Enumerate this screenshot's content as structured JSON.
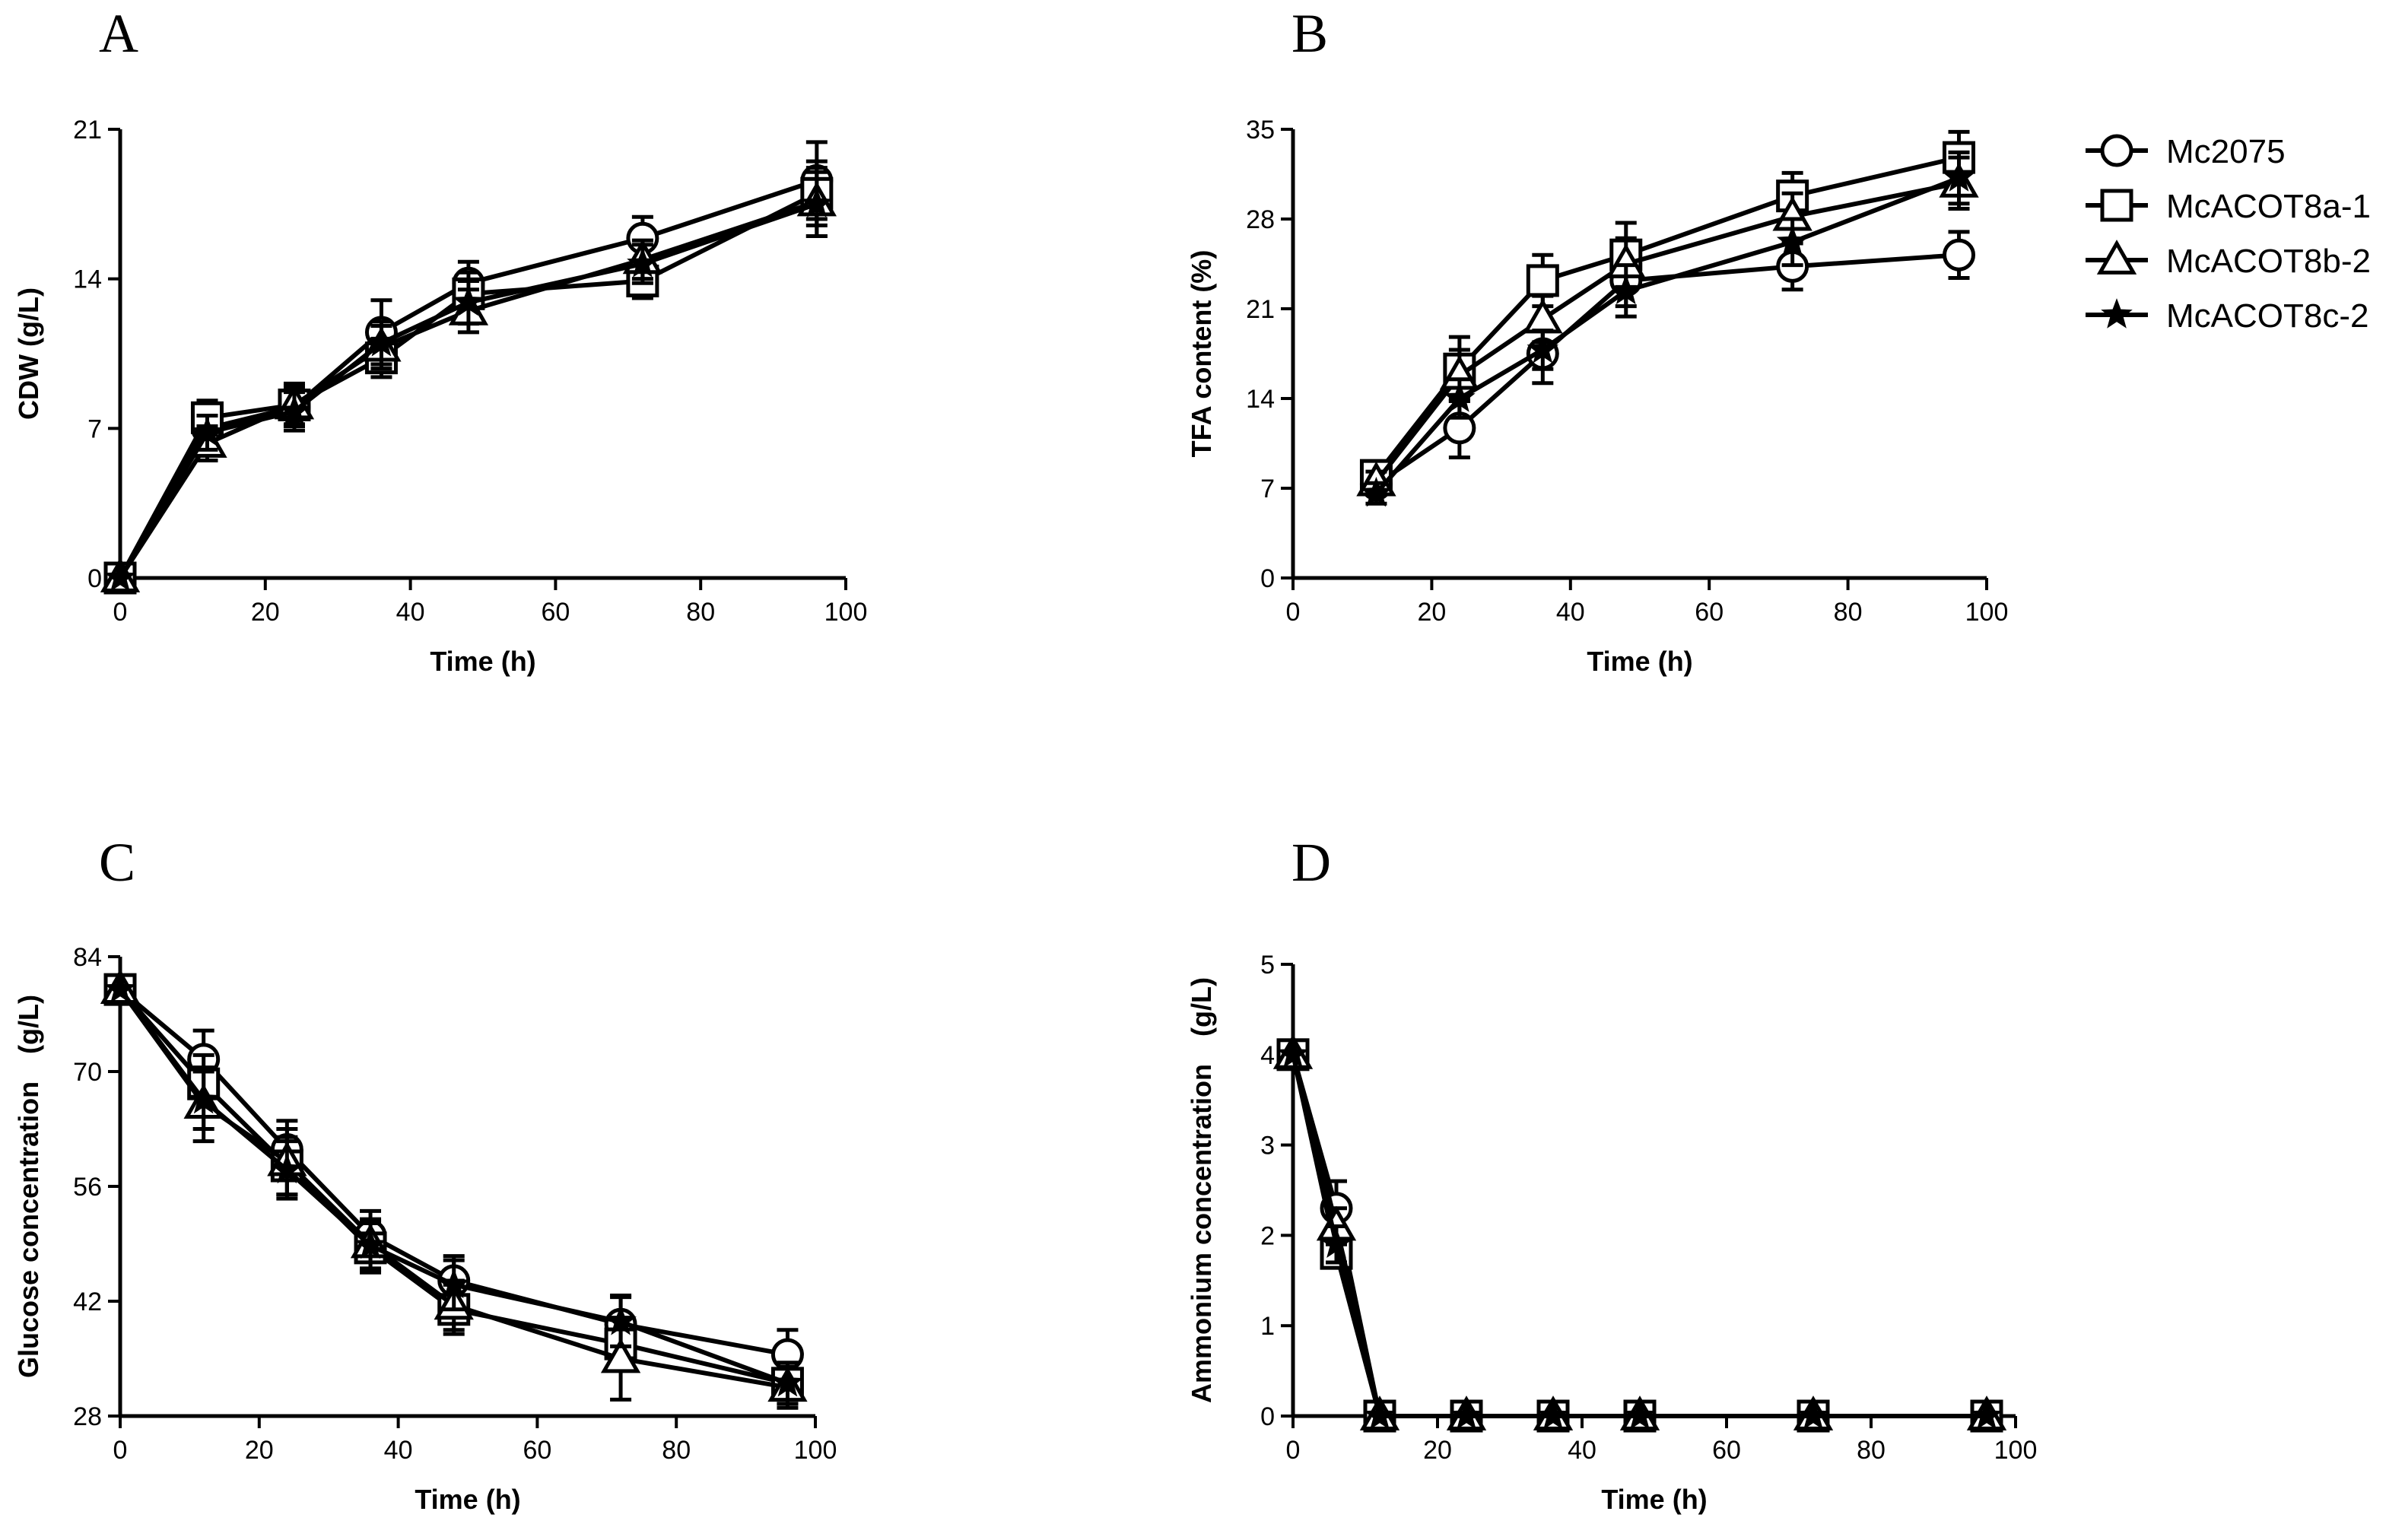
{
  "legend": [
    {
      "name": "Mc2075",
      "marker": "circle"
    },
    {
      "name": "McACOT8a-1",
      "marker": "square"
    },
    {
      "name": "McACOT8b-2",
      "marker": "triangle"
    },
    {
      "name": "McACOT8c-2",
      "marker": "star"
    }
  ],
  "chart_data": [
    {
      "panel": "A",
      "type": "line",
      "xlabel": "Time (h)",
      "ylabel": "CDW (g/L)",
      "xlim": [
        0,
        100
      ],
      "ylim": [
        0,
        21
      ],
      "xticks": [
        0,
        20,
        40,
        60,
        80,
        100
      ],
      "yticks": [
        0,
        7,
        14,
        21
      ],
      "series": [
        {
          "name": "Mc2075",
          "marker": "circle",
          "x": [
            0,
            12,
            24,
            36,
            48,
            72,
            96
          ],
          "y": [
            0,
            7.0,
            8.0,
            11.5,
            13.8,
            15.9,
            18.6
          ],
          "err": [
            0,
            0.8,
            0.9,
            1.5,
            1.0,
            1.0,
            1.8
          ]
        },
        {
          "name": "McACOT8a-1",
          "marker": "square",
          "x": [
            0,
            12,
            24,
            36,
            48,
            72,
            96
          ],
          "y": [
            0,
            7.5,
            8.1,
            10.3,
            13.3,
            13.9,
            18.0
          ],
          "err": [
            0,
            0.8,
            0.9,
            0.9,
            1.0,
            0.8,
            1.5
          ]
        },
        {
          "name": "McACOT8b-2",
          "marker": "triangle",
          "x": [
            0,
            12,
            24,
            36,
            48,
            72,
            96
          ],
          "y": [
            0,
            6.3,
            8.1,
            10.8,
            12.5,
            14.9,
            17.6
          ],
          "err": [
            0,
            0.8,
            1.0,
            1.0,
            1.0,
            0.9,
            1.6
          ]
        },
        {
          "name": "McACOT8c-2",
          "marker": "star",
          "x": [
            0,
            12,
            24,
            36,
            48,
            72,
            96
          ],
          "y": [
            0,
            6.8,
            7.8,
            11.0,
            12.9,
            14.7,
            17.5
          ],
          "err": [
            0,
            0.8,
            0.9,
            1.0,
            1.0,
            0.9,
            1.5
          ]
        }
      ]
    },
    {
      "panel": "B",
      "type": "line",
      "xlabel": "Time (h)",
      "ylabel": "TFA content (%)",
      "xlim": [
        0,
        100
      ],
      "ylim": [
        0,
        35
      ],
      "xticks": [
        0,
        20,
        40,
        60,
        80,
        100
      ],
      "yticks": [
        0,
        7,
        14,
        21,
        28,
        35
      ],
      "series": [
        {
          "name": "Mc2075",
          "marker": "circle",
          "x": [
            12,
            24,
            36,
            48,
            72,
            96
          ],
          "y": [
            7.3,
            11.7,
            17.5,
            23.2,
            24.3,
            25.2
          ],
          "err": [
            0.8,
            2.3,
            2.3,
            2.0,
            1.8,
            1.8
          ]
        },
        {
          "name": "McACOT8a-1",
          "marker": "square",
          "x": [
            12,
            24,
            36,
            48,
            72,
            96
          ],
          "y": [
            8.0,
            16.3,
            23.2,
            25.2,
            29.8,
            32.8
          ],
          "err": [
            0.8,
            2.5,
            2.0,
            2.5,
            1.8,
            2.0
          ]
        },
        {
          "name": "McACOT8b-2",
          "marker": "triangle",
          "x": [
            12,
            24,
            36,
            48,
            72,
            96
          ],
          "y": [
            7.5,
            15.8,
            20.2,
            24.5,
            28.2,
            30.8
          ],
          "err": [
            0.8,
            2.0,
            1.8,
            2.0,
            1.8,
            2.0
          ]
        },
        {
          "name": "McACOT8c-2",
          "marker": "star",
          "x": [
            12,
            24,
            36,
            48,
            72,
            96
          ],
          "y": [
            6.6,
            14.0,
            17.8,
            22.4,
            26.2,
            31.2
          ],
          "err": [
            0.8,
            1.5,
            1.5,
            2.0,
            1.8,
            2.0
          ]
        }
      ]
    },
    {
      "panel": "C",
      "type": "line",
      "xlabel": "Time (h)",
      "ylabel": "Glucose concentration　(g/L)",
      "xlim": [
        0,
        100
      ],
      "ylim": [
        28,
        84
      ],
      "xticks": [
        0,
        20,
        40,
        60,
        80,
        100
      ],
      "yticks": [
        28,
        42,
        56,
        70,
        84
      ],
      "series": [
        {
          "name": "Mc2075",
          "marker": "circle",
          "x": [
            0,
            12,
            24,
            36,
            48,
            72,
            96
          ],
          "y": [
            80,
            71.5,
            60.5,
            50.0,
            44.5,
            39.2,
            35.5
          ],
          "err": [
            0,
            3.5,
            3.5,
            3.0,
            3.0,
            3.5,
            3.0
          ]
        },
        {
          "name": "McACOT8a-1",
          "marker": "square",
          "x": [
            0,
            12,
            24,
            36,
            48,
            72,
            96
          ],
          "y": [
            80,
            68.5,
            58.5,
            48.5,
            41.0,
            36.8,
            32.0
          ],
          "err": [
            0,
            3.5,
            3.5,
            3.0,
            3.0,
            3.0,
            2.5
          ]
        },
        {
          "name": "McACOT8b-2",
          "marker": "triangle",
          "x": [
            0,
            12,
            24,
            36,
            48,
            72,
            96
          ],
          "y": [
            80,
            66.0,
            59.0,
            49.0,
            41.5,
            35.0,
            31.5
          ],
          "err": [
            0,
            4.5,
            4.0,
            3.0,
            3.0,
            5.0,
            2.5
          ]
        },
        {
          "name": "McACOT8c-2",
          "marker": "star",
          "x": [
            0,
            12,
            24,
            36,
            48,
            72,
            96
          ],
          "y": [
            80,
            66.5,
            58.0,
            48.8,
            44.0,
            39.5,
            32.0
          ],
          "err": [
            0,
            3.5,
            3.5,
            3.0,
            3.0,
            3.0,
            2.5
          ]
        }
      ]
    },
    {
      "panel": "D",
      "type": "line",
      "xlabel": "Time (h)",
      "ylabel": "Ammonium concentration　(g/L)",
      "xlim": [
        0,
        100
      ],
      "ylim": [
        0,
        5
      ],
      "xticks": [
        0,
        20,
        40,
        60,
        80,
        100
      ],
      "yticks": [
        0,
        1,
        2,
        3,
        4,
        5
      ],
      "series": [
        {
          "name": "Mc2075",
          "marker": "circle",
          "x": [
            0,
            6,
            12,
            24,
            36,
            48,
            72,
            96
          ],
          "y": [
            4.0,
            2.3,
            0,
            0,
            0,
            0,
            0,
            0
          ],
          "err": [
            0,
            0.3,
            0,
            0,
            0,
            0,
            0,
            0
          ]
        },
        {
          "name": "McACOT8a-1",
          "marker": "square",
          "x": [
            0,
            6,
            12,
            24,
            36,
            48,
            72,
            96
          ],
          "y": [
            4.0,
            1.8,
            0,
            0,
            0,
            0,
            0,
            0
          ],
          "err": [
            0,
            0.15,
            0,
            0,
            0,
            0,
            0,
            0
          ]
        },
        {
          "name": "McACOT8b-2",
          "marker": "triangle",
          "x": [
            0,
            6,
            12,
            24,
            36,
            48,
            72,
            96
          ],
          "y": [
            4.0,
            2.1,
            0,
            0,
            0,
            0,
            0,
            0
          ],
          "err": [
            0,
            0.2,
            0,
            0,
            0,
            0,
            0,
            0
          ]
        },
        {
          "name": "McACOT8c-2",
          "marker": "star",
          "x": [
            0,
            6,
            12,
            24,
            36,
            48,
            72,
            96
          ],
          "y": [
            4.0,
            1.9,
            0,
            0,
            0,
            0,
            0,
            0
          ],
          "err": [
            0,
            0.2,
            0,
            0,
            0,
            0,
            0,
            0
          ]
        }
      ]
    }
  ]
}
